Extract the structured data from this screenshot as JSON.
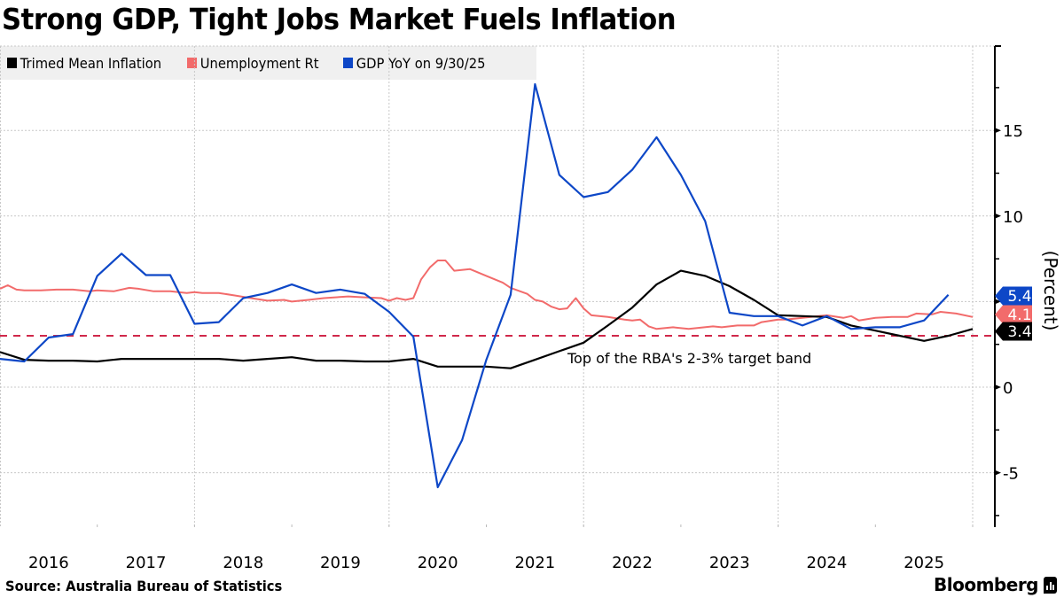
{
  "header": {
    "title": "Strong GDP, Tight Jobs Market Fuels Inflation"
  },
  "footer": {
    "source": "Source: Australia Bureau of Statistics",
    "brand": "Bloomberg"
  },
  "chart_data": {
    "type": "line",
    "title": "Strong GDP, Tight Jobs Market Fuels Inflation",
    "xlabel": "",
    "ylabel": "(Percent)",
    "xlim": [
      2016.0,
      2026.3
    ],
    "ylim": [
      -8.2,
      20
    ],
    "y_ticks": [
      -5,
      0,
      5,
      10,
      15
    ],
    "y_tick_labels": [
      "-5",
      "0",
      "",
      "10",
      "15"
    ],
    "y_minor_ticks": [
      -7.5,
      -2.5,
      2.5,
      7.5,
      12.5,
      17.5,
      20
    ],
    "x_tick_labels": [
      "2016",
      "2017",
      "2018",
      "2019",
      "2020",
      "2021",
      "2022",
      "2023",
      "2024",
      "2025"
    ],
    "grid": true,
    "legend_position": "top-left",
    "legend": [
      {
        "name": "Trimed Mean Inflation",
        "color": "#000000"
      },
      {
        "name": "Unemployment Rt",
        "color": "#f26b6b"
      },
      {
        "name": "GDP YoY on 9/30/25",
        "color": "#0d47c7"
      }
    ],
    "reference_line": {
      "value": 3.0,
      "color": "#d0284a",
      "style": "dashed",
      "label": "Top of the RBA's 2-3% target band"
    },
    "series": [
      {
        "name": "Trimed Mean Inflation",
        "color": "#000000",
        "end_label": "3.4",
        "points": [
          [
            2016.0,
            2.05
          ],
          [
            2016.25,
            1.6
          ],
          [
            2016.5,
            1.55
          ],
          [
            2016.75,
            1.55
          ],
          [
            2017.0,
            1.5
          ],
          [
            2017.25,
            1.65
          ],
          [
            2017.5,
            1.65
          ],
          [
            2017.75,
            1.65
          ],
          [
            2018.0,
            1.65
          ],
          [
            2018.25,
            1.65
          ],
          [
            2018.5,
            1.55
          ],
          [
            2018.75,
            1.65
          ],
          [
            2019.0,
            1.75
          ],
          [
            2019.25,
            1.55
          ],
          [
            2019.5,
            1.55
          ],
          [
            2019.75,
            1.5
          ],
          [
            2020.0,
            1.5
          ],
          [
            2020.25,
            1.65
          ],
          [
            2020.5,
            1.2
          ],
          [
            2020.75,
            1.2
          ],
          [
            2021.0,
            1.2
          ],
          [
            2021.25,
            1.1
          ],
          [
            2021.5,
            1.6
          ],
          [
            2021.75,
            2.1
          ],
          [
            2022.0,
            2.6
          ],
          [
            2022.25,
            3.6
          ],
          [
            2022.5,
            4.65
          ],
          [
            2022.75,
            6.0
          ],
          [
            2023.0,
            6.8
          ],
          [
            2023.25,
            6.5
          ],
          [
            2023.5,
            5.9
          ],
          [
            2023.75,
            5.1
          ],
          [
            2024.0,
            4.2
          ],
          [
            2024.25,
            4.15
          ],
          [
            2024.5,
            4.1
          ],
          [
            2024.75,
            3.6
          ],
          [
            2025.0,
            3.3
          ],
          [
            2025.25,
            3.0
          ],
          [
            2025.5,
            2.7
          ],
          [
            2025.75,
            3.0
          ],
          [
            2026.0,
            3.4
          ]
        ]
      },
      {
        "name": "Unemployment Rt",
        "color": "#f26b6b",
        "end_label": "4.1",
        "points": [
          [
            2016.0,
            5.75
          ],
          [
            2016.08,
            5.95
          ],
          [
            2016.17,
            5.7
          ],
          [
            2016.25,
            5.65
          ],
          [
            2016.42,
            5.65
          ],
          [
            2016.58,
            5.7
          ],
          [
            2016.75,
            5.7
          ],
          [
            2016.92,
            5.6
          ],
          [
            2017.0,
            5.65
          ],
          [
            2017.17,
            5.6
          ],
          [
            2017.33,
            5.8
          ],
          [
            2017.42,
            5.75
          ],
          [
            2017.58,
            5.6
          ],
          [
            2017.75,
            5.6
          ],
          [
            2017.92,
            5.5
          ],
          [
            2018.0,
            5.55
          ],
          [
            2018.08,
            5.5
          ],
          [
            2018.25,
            5.5
          ],
          [
            2018.42,
            5.35
          ],
          [
            2018.58,
            5.2
          ],
          [
            2018.75,
            5.05
          ],
          [
            2018.92,
            5.1
          ],
          [
            2019.0,
            5.0
          ],
          [
            2019.17,
            5.1
          ],
          [
            2019.33,
            5.2
          ],
          [
            2019.58,
            5.3
          ],
          [
            2019.75,
            5.25
          ],
          [
            2019.92,
            5.2
          ],
          [
            2020.0,
            5.05
          ],
          [
            2020.08,
            5.2
          ],
          [
            2020.17,
            5.1
          ],
          [
            2020.25,
            5.2
          ],
          [
            2020.33,
            6.3
          ],
          [
            2020.42,
            7.0
          ],
          [
            2020.5,
            7.4
          ],
          [
            2020.58,
            7.4
          ],
          [
            2020.67,
            6.8
          ],
          [
            2020.83,
            6.9
          ],
          [
            2021.0,
            6.5
          ],
          [
            2021.17,
            6.1
          ],
          [
            2021.25,
            5.8
          ],
          [
            2021.42,
            5.45
          ],
          [
            2021.5,
            5.1
          ],
          [
            2021.58,
            5.0
          ],
          [
            2021.67,
            4.7
          ],
          [
            2021.75,
            4.55
          ],
          [
            2021.83,
            4.6
          ],
          [
            2021.92,
            5.2
          ],
          [
            2022.0,
            4.6
          ],
          [
            2022.08,
            4.2
          ],
          [
            2022.25,
            4.1
          ],
          [
            2022.42,
            3.95
          ],
          [
            2022.5,
            3.9
          ],
          [
            2022.58,
            3.95
          ],
          [
            2022.67,
            3.55
          ],
          [
            2022.75,
            3.4
          ],
          [
            2022.92,
            3.5
          ],
          [
            2023.08,
            3.4
          ],
          [
            2023.33,
            3.55
          ],
          [
            2023.42,
            3.5
          ],
          [
            2023.58,
            3.6
          ],
          [
            2023.75,
            3.6
          ],
          [
            2023.83,
            3.8
          ],
          [
            2024.0,
            3.95
          ],
          [
            2024.08,
            3.95
          ],
          [
            2024.25,
            4.05
          ],
          [
            2024.42,
            4.15
          ],
          [
            2024.5,
            4.2
          ],
          [
            2024.67,
            4.05
          ],
          [
            2024.75,
            4.15
          ],
          [
            2024.83,
            3.9
          ],
          [
            2025.0,
            4.05
          ],
          [
            2025.17,
            4.1
          ],
          [
            2025.33,
            4.1
          ],
          [
            2025.42,
            4.3
          ],
          [
            2025.58,
            4.25
          ],
          [
            2025.67,
            4.4
          ],
          [
            2025.83,
            4.3
          ],
          [
            2026.0,
            4.1
          ]
        ]
      },
      {
        "name": "GDP YoY on 9/30/25",
        "color": "#0d47c7",
        "end_label": "5.4",
        "points": [
          [
            2016.0,
            1.65
          ],
          [
            2016.25,
            1.5
          ],
          [
            2016.5,
            2.9
          ],
          [
            2016.75,
            3.1
          ],
          [
            2017.0,
            6.5
          ],
          [
            2017.25,
            7.8
          ],
          [
            2017.5,
            6.55
          ],
          [
            2017.75,
            6.55
          ],
          [
            2018.0,
            3.7
          ],
          [
            2018.25,
            3.8
          ],
          [
            2018.5,
            5.2
          ],
          [
            2018.75,
            5.5
          ],
          [
            2019.0,
            6.0
          ],
          [
            2019.25,
            5.5
          ],
          [
            2019.5,
            5.7
          ],
          [
            2019.75,
            5.45
          ],
          [
            2020.0,
            4.4
          ],
          [
            2020.25,
            2.95
          ],
          [
            2020.5,
            -5.85
          ],
          [
            2020.75,
            -3.1
          ],
          [
            2021.0,
            1.6
          ],
          [
            2021.25,
            5.4
          ],
          [
            2021.5,
            17.7
          ],
          [
            2021.75,
            12.4
          ],
          [
            2022.0,
            11.1
          ],
          [
            2022.25,
            11.4
          ],
          [
            2022.5,
            12.7
          ],
          [
            2022.75,
            14.6
          ],
          [
            2023.0,
            12.4
          ],
          [
            2023.25,
            9.7
          ],
          [
            2023.5,
            4.35
          ],
          [
            2023.75,
            4.15
          ],
          [
            2024.0,
            4.15
          ],
          [
            2024.25,
            3.6
          ],
          [
            2024.5,
            4.15
          ],
          [
            2024.75,
            3.4
          ],
          [
            2025.0,
            3.5
          ],
          [
            2025.25,
            3.5
          ],
          [
            2025.5,
            3.9
          ],
          [
            2025.75,
            5.4
          ]
        ]
      }
    ]
  }
}
